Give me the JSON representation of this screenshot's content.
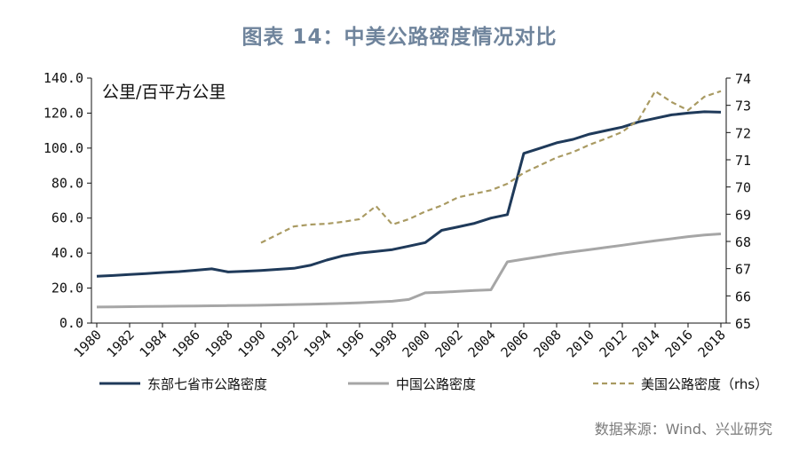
{
  "title": "图表 14：中美公路密度情况对比",
  "source": "数据来源：Wind、兴业研究",
  "chart_data": {
    "type": "line",
    "title": "图表 14：中美公路密度情况对比",
    "unit_label": "公里/百平方公里",
    "x": [
      1980,
      1981,
      1982,
      1983,
      1984,
      1985,
      1986,
      1987,
      1988,
      1989,
      1990,
      1991,
      1992,
      1993,
      1994,
      1995,
      1996,
      1997,
      1998,
      1999,
      2000,
      2001,
      2002,
      2003,
      2004,
      2005,
      2006,
      2007,
      2008,
      2009,
      2010,
      2011,
      2012,
      2013,
      2014,
      2015,
      2016,
      2017,
      2018
    ],
    "xticks": [
      "1980",
      "1982",
      "1984",
      "1986",
      "1988",
      "1990",
      "1992",
      "1994",
      "1996",
      "1998",
      "2000",
      "2002",
      "2004",
      "2006",
      "2008",
      "2010",
      "2012",
      "2014",
      "2016",
      "2018"
    ],
    "ylim_left": [
      0,
      140
    ],
    "yticks_left": [
      "0.0",
      "20.0",
      "40.0",
      "60.0",
      "80.0",
      "100.0",
      "120.0",
      "140.0"
    ],
    "ylim_right": [
      65,
      74
    ],
    "yticks_right": [
      "65",
      "66",
      "67",
      "68",
      "69",
      "70",
      "71",
      "72",
      "73",
      "74"
    ],
    "series": [
      {
        "name": "东部七省市公路密度",
        "axis": "left",
        "color": "#1f3a5a",
        "style": "solid",
        "values": [
          26.8,
          27.2,
          27.8,
          28.3,
          28.9,
          29.4,
          30.2,
          31.0,
          29.2,
          29.6,
          30.1,
          30.7,
          31.3,
          33.0,
          36.0,
          38.5,
          40.0,
          41.0,
          42.0,
          44.0,
          46.0,
          53.0,
          55.0,
          57.0,
          60.0,
          62.0,
          97.0,
          100.0,
          103.0,
          105.0,
          108.0,
          110.0,
          112.0,
          115.0,
          117.0,
          119.0,
          120.0,
          120.8,
          120.5
        ]
      },
      {
        "name": "中国公路密度",
        "axis": "left",
        "color": "#a6a6a6",
        "style": "solid",
        "values": [
          9.2,
          9.3,
          9.4,
          9.5,
          9.6,
          9.7,
          9.8,
          9.9,
          10.0,
          10.1,
          10.2,
          10.4,
          10.6,
          10.8,
          11.0,
          11.3,
          11.6,
          12.0,
          12.5,
          13.5,
          17.3,
          17.6,
          18.1,
          18.6,
          19.0,
          35.0,
          36.5,
          38.0,
          39.5,
          40.8,
          42.0,
          43.2,
          44.5,
          45.8,
          47.0,
          48.2,
          49.4,
          50.3,
          51.0
        ]
      },
      {
        "name": "美国公路密度（rhs）",
        "axis": "right",
        "color": "#a99a62",
        "style": "dashed",
        "x": [
          1990,
          1991,
          1992,
          1993,
          1994,
          1995,
          1996,
          1997,
          1998,
          1999,
          2000,
          2001,
          2002,
          2003,
          2004,
          2005,
          2006,
          2007,
          2008,
          2009,
          2010,
          2011,
          2012,
          2013,
          2014,
          2015,
          2016,
          2017,
          2018
        ],
        "values": [
          67.95,
          68.25,
          68.55,
          68.62,
          68.65,
          68.72,
          68.82,
          69.3,
          68.62,
          68.82,
          69.1,
          69.32,
          69.62,
          69.75,
          69.88,
          70.12,
          70.52,
          70.8,
          71.08,
          71.28,
          71.55,
          71.78,
          72.02,
          72.48,
          73.52,
          73.12,
          72.82,
          73.32,
          73.52
        ]
      }
    ]
  }
}
